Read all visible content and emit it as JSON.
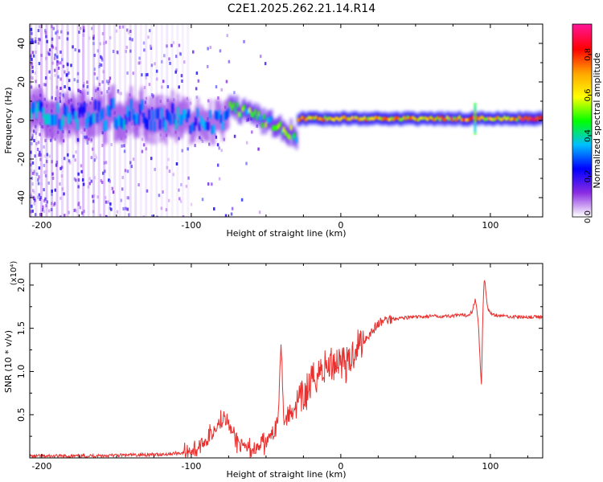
{
  "figure_title": "C2E1.2025.262.21.14.R14",
  "colors": {
    "signal": "#e8302e",
    "frame": "#000000"
  },
  "chart_data": [
    {
      "type": "heatmap",
      "title": "C2E1.2025.262.21.14.R14",
      "xlabel": "Height of straight line (km)",
      "ylabel": "Frequency (Hz)",
      "xlim": [
        -208,
        135
      ],
      "ylim": [
        -50,
        50
      ],
      "x_ticks": [
        -200,
        -100,
        0,
        100
      ],
      "x_tick_labels": [
        "-200",
        "-100",
        "0",
        "100"
      ],
      "y_ticks": [
        -40,
        -20,
        0,
        20,
        40
      ],
      "y_tick_labels": [
        "-40",
        "-20",
        "0",
        "20",
        "40"
      ],
      "colorbar": {
        "label": "Normalized spectral amplitude",
        "range": [
          0,
          0.95
        ],
        "ticks": [
          0.0,
          0.2,
          0.4,
          0.6,
          0.8
        ],
        "tick_labels": [
          "0.0",
          "0.2",
          "0.4",
          "0.6",
          "0.8"
        ],
        "colors": [
          "#ffffff",
          "#8a2be2",
          "#0000ff",
          "#00bfff",
          "#00ff00",
          "#ffff00",
          "#ffa500",
          "#ff0000",
          "#ff1493"
        ]
      },
      "ridge": [
        {
          "x_range": [
            -208,
            -105
          ],
          "center_hz": 3,
          "spread_hz": 6,
          "amplitude": 0.3
        },
        {
          "x_range": [
            -105,
            -75
          ],
          "center_hz": 0,
          "spread_hz": 5,
          "amplitude": 0.28
        },
        {
          "x_range": [
            -75,
            -30
          ],
          "center_hz_start": 8,
          "center_hz_end": -8,
          "spread_hz": 3,
          "amplitude": 0.45
        },
        {
          "x_range": [
            -30,
            135
          ],
          "center_hz": 1,
          "spread_hz": 2,
          "amplitude": 0.65
        }
      ],
      "peak_region": {
        "x_range": [
          120,
          135
        ],
        "center_hz": 2,
        "amplitude": 0.9
      }
    },
    {
      "type": "line",
      "title": "",
      "xlabel": "Height of straight line (km)",
      "ylabel": "SNR (10 * v/v)",
      "y_scale_label": "(x10⁴)",
      "xlim": [
        -208,
        135
      ],
      "ylim": [
        0,
        2.25
      ],
      "x_ticks": [
        -200,
        -100,
        0,
        100
      ],
      "x_tick_labels": [
        "-200",
        "-100",
        "0",
        "100"
      ],
      "y_ticks": [
        0.5,
        1.0,
        1.5,
        2.0
      ],
      "y_tick_labels": [
        "0.5",
        "1.0",
        "1.5",
        "2.0"
      ],
      "series": [
        {
          "name": "SNR",
          "x": [
            -208,
            -180,
            -150,
            -120,
            -105,
            -95,
            -88,
            -80,
            -78,
            -75,
            -70,
            -65,
            -60,
            -55,
            -50,
            -45,
            -42,
            -40,
            -38,
            -35,
            -30,
            -25,
            -20,
            -15,
            -10,
            -5,
            0,
            5,
            8,
            10,
            15,
            20,
            25,
            30,
            40,
            50,
            60,
            70,
            80,
            85,
            88,
            90,
            92,
            94,
            95,
            96,
            98,
            100,
            105,
            110,
            120,
            135
          ],
          "y": [
            0.02,
            0.02,
            0.03,
            0.04,
            0.06,
            0.12,
            0.25,
            0.45,
            0.55,
            0.38,
            0.2,
            0.12,
            0.1,
            0.12,
            0.18,
            0.3,
            0.45,
            1.4,
            0.4,
            0.5,
            0.6,
            0.7,
            0.85,
            1.0,
            1.05,
            1.1,
            1.15,
            1.05,
            1.2,
            1.3,
            1.35,
            1.45,
            1.55,
            1.6,
            1.62,
            1.63,
            1.64,
            1.64,
            1.65,
            1.65,
            1.7,
            1.85,
            1.55,
            0.8,
            1.7,
            2.1,
            1.75,
            1.67,
            1.65,
            1.64,
            1.63,
            1.63
          ]
        }
      ]
    }
  ]
}
